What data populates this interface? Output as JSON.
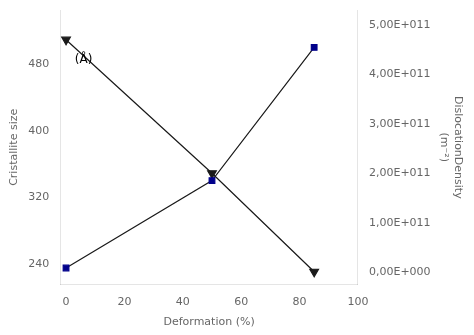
{
  "chart_data": {
    "type": "line",
    "xlabel": "Deformation (%)",
    "ylabel": "Cristallite size",
    "y2label": "DislocationDensity\n(m⁻²)",
    "annotations": [
      {
        "text": "(Å)",
        "x": 3,
        "y": 478
      }
    ],
    "x": [
      0,
      50,
      85
    ],
    "color": "#1a1a1a",
    "series": [
      {
        "color": "#00008B",
        "marker": "square",
        "values": [
          235,
          340,
          500
        ]
      },
      {
        "color": "#1a1a1a",
        "marker": "triangle_down",
        "axis": "y2",
        "values": [
          470000000000.0,
          200000000000.0,
          1000000000.0
        ]
      }
    ],
    "xlim": [
      -2,
      100
    ],
    "xticks": [
      0,
      20,
      40,
      60,
      80,
      100
    ],
    "ylim": [
      215,
      545
    ],
    "yticks": [
      240,
      320,
      400,
      480
    ],
    "y2lim": [
      -25000000000.0,
      530000000000.0
    ],
    "y2ticks": [
      {
        "value": 0,
        "label": "0,00E+000"
      },
      {
        "value": 100000000000.0,
        "label": "1,00E+011"
      },
      {
        "value": 200000000000.0,
        "label": "2,00E+011"
      },
      {
        "value": 300000000000.0,
        "label": "3,00E+011"
      },
      {
        "value": 400000000000.0,
        "label": "4,00E+011"
      },
      {
        "value": 500000000000.0,
        "label": "5,00E+011"
      }
    ],
    "grid": false
  }
}
